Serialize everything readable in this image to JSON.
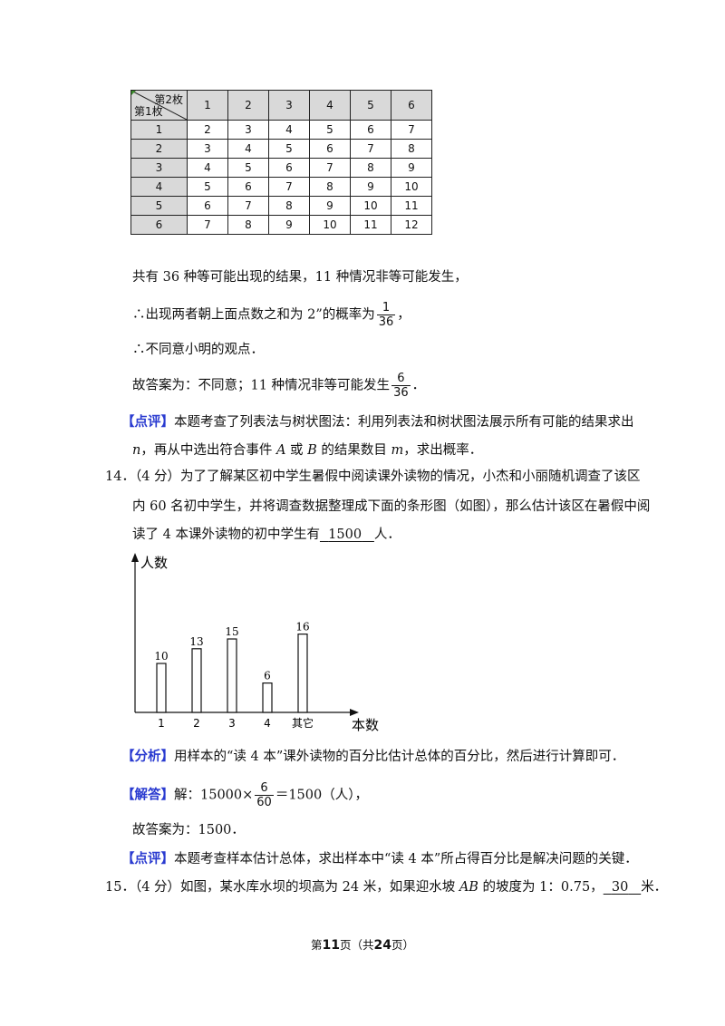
{
  "table": {
    "corner_top": "第2枚",
    "corner_bottom": "第1枚",
    "col_headers": [
      "1",
      "2",
      "3",
      "4",
      "5",
      "6"
    ],
    "rows": [
      {
        "h": "1",
        "cells": [
          "2",
          "3",
          "4",
          "5",
          "6",
          "7"
        ]
      },
      {
        "h": "2",
        "cells": [
          "3",
          "4",
          "5",
          "6",
          "7",
          "8"
        ]
      },
      {
        "h": "3",
        "cells": [
          "4",
          "5",
          "6",
          "7",
          "8",
          "9"
        ]
      },
      {
        "h": "4",
        "cells": [
          "5",
          "6",
          "7",
          "8",
          "9",
          "10"
        ]
      },
      {
        "h": "5",
        "cells": [
          "6",
          "7",
          "8",
          "9",
          "10",
          "11"
        ]
      },
      {
        "h": "6",
        "cells": [
          "7",
          "8",
          "9",
          "10",
          "11",
          "12"
        ]
      }
    ]
  },
  "q13": {
    "line1": "共有 36 种等可能出现的结果，11 种情况非等可能发生，",
    "line2_pre": "∴出现两者朝上面点数之和为 2”的概率为",
    "frac1_num": "1",
    "frac1_den": "36",
    "line2_post": "，",
    "line3": "∴不同意小明的观点．",
    "line4_pre": "故答案为：不同意；11 种情况非等可能发生",
    "frac2_num": "6",
    "frac2_den": "36",
    "line4_post": "．",
    "comment_tag": "【点评】",
    "comment_1": "本题考查了列表法与树状图法：利用列表法和树状图法展示所有可能的结果求出",
    "comment_2a": "n",
    "comment_2b": "，再从中选出符合事件 ",
    "comment_2c": "A",
    "comment_2d": " 或 ",
    "comment_2e": "B",
    "comment_2f": " 的结果数目 ",
    "comment_2g": "m",
    "comment_2h": "，求出概率．"
  },
  "q14": {
    "l1": "14．（4 分）为了了解某区初中学生暑假中阅读课外读物的情况，小杰和小丽随机调查了该区",
    "l2": "内 60 名初中学生，并将调查数据整理成下面的条形图（如图），那么估计该区在暑假中阅",
    "l3_pre": "读了 4 本课外读物的初中学生有",
    "answer": "1500",
    "l3_post": "人．",
    "analysis_tag": "【分析】",
    "analysis": "用样本的“读 4 本”课外读物的百分比估计总体的百分比，然后进行计算即可．",
    "solution_tag": "【解答】",
    "sol_pre": "解：15000×",
    "sol_num": "6",
    "sol_den": "60",
    "sol_post": "＝1500（人），",
    "final": "故答案为：1500．",
    "comment_tag": "【点评】",
    "comment": "本题考查样本估计总体，求出样本中“读 4 本”所占得百分比是解决问题的关键．"
  },
  "q15": {
    "pre": "15．（4 分）如图，某水库水坝的坝高为 24 米，如果迎水坡 ",
    "var": "AB",
    "mid": " 的坡度为 1：0.75，",
    "answer": "30",
    "post": "米．"
  },
  "chart_data": {
    "type": "bar",
    "ylabel": "人数",
    "xlabel": "本数",
    "categories": [
      "1",
      "2",
      "3",
      "4",
      "其它"
    ],
    "values": [
      10,
      13,
      15,
      6,
      16
    ]
  },
  "footer": {
    "pre": "第",
    "page": "11",
    "mid": "页（共",
    "total": "24",
    "post": "页）"
  }
}
